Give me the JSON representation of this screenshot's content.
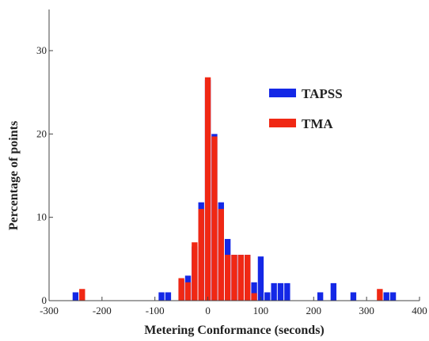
{
  "chart_data": {
    "type": "bar",
    "title": "",
    "xlabel": "Metering Conformance (seconds)",
    "ylabel": "Percentage of points",
    "xlim": [
      -300,
      400
    ],
    "ylim": [
      0,
      30
    ],
    "xticks": [
      -300,
      -200,
      -100,
      0,
      100,
      200,
      300,
      400
    ],
    "yticks": [
      0,
      10,
      20,
      30
    ],
    "bin_width": 12.5,
    "legend_position": "right",
    "grid": false,
    "series": [
      {
        "name": "TAPSS",
        "color": "#1428e6",
        "bars": [
          {
            "x": -250,
            "y": 1
          },
          {
            "x": -87.5,
            "y": 1
          },
          {
            "x": -75,
            "y": 1
          },
          {
            "x": -50,
            "y": 2.5
          },
          {
            "x": -37.5,
            "y": 3
          },
          {
            "x": -25,
            "y": 6.5
          },
          {
            "x": -12.5,
            "y": 11.8
          },
          {
            "x": 0,
            "y": 26.5
          },
          {
            "x": 12.5,
            "y": 20
          },
          {
            "x": 25,
            "y": 11.8
          },
          {
            "x": 37.5,
            "y": 7.4
          },
          {
            "x": 50,
            "y": 5.5
          },
          {
            "x": 62.5,
            "y": 5.5
          },
          {
            "x": 75,
            "y": 5.5
          },
          {
            "x": 87.5,
            "y": 2.2
          },
          {
            "x": 100,
            "y": 5.3
          },
          {
            "x": 112.5,
            "y": 1
          },
          {
            "x": 125,
            "y": 2.1
          },
          {
            "x": 137.5,
            "y": 2.1
          },
          {
            "x": 150,
            "y": 2.1
          },
          {
            "x": 212.5,
            "y": 1
          },
          {
            "x": 237.5,
            "y": 2.1
          },
          {
            "x": 275,
            "y": 1
          },
          {
            "x": 337.5,
            "y": 1
          },
          {
            "x": 350,
            "y": 1
          }
        ]
      },
      {
        "name": "TMA",
        "color": "#f02814",
        "bars": [
          {
            "x": -237.5,
            "y": 1.4
          },
          {
            "x": -50,
            "y": 2.7
          },
          {
            "x": -37.5,
            "y": 2.2
          },
          {
            "x": -25,
            "y": 7
          },
          {
            "x": -12.5,
            "y": 11
          },
          {
            "x": 0,
            "y": 26.8
          },
          {
            "x": 12.5,
            "y": 19.7
          },
          {
            "x": 25,
            "y": 11
          },
          {
            "x": 37.5,
            "y": 5.5
          },
          {
            "x": 50,
            "y": 5.5
          },
          {
            "x": 62.5,
            "y": 5.5
          },
          {
            "x": 75,
            "y": 5.5
          },
          {
            "x": 87.5,
            "y": 0.9
          },
          {
            "x": 325,
            "y": 1.4
          }
        ]
      }
    ]
  }
}
